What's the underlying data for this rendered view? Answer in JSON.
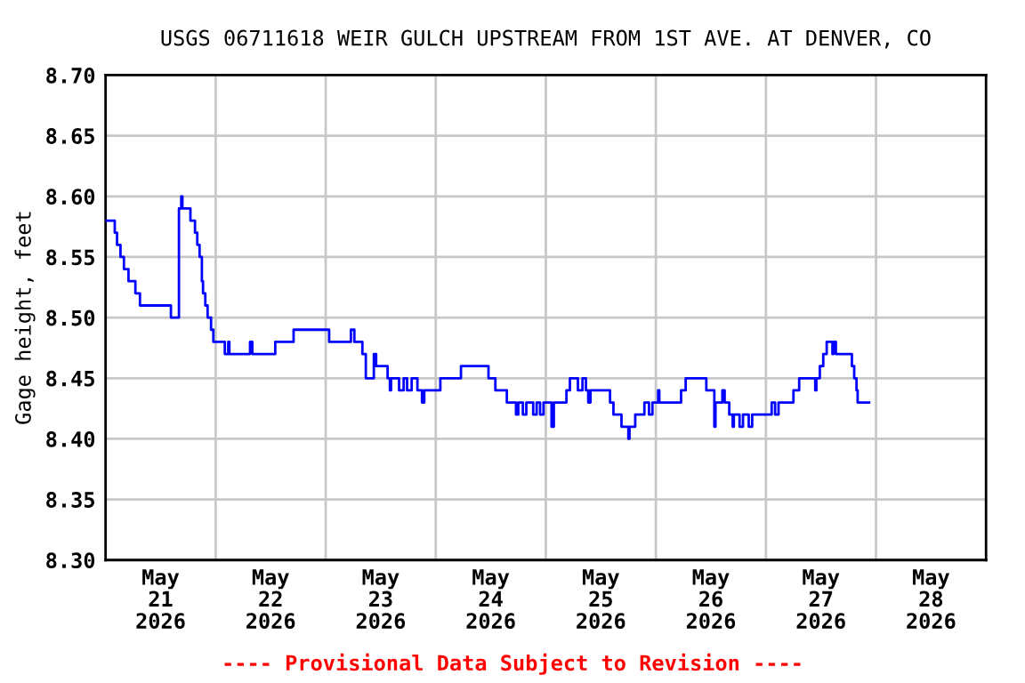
{
  "chart_data": {
    "type": "step",
    "title": "USGS 06711618 WEIR GULCH UPSTREAM FROM 1ST AVE. AT DENVER, CO",
    "ylabel": "Gage height, feet",
    "annotations": [
      "---- Provisional Data Subject to Revision ----"
    ],
    "series": [
      {
        "color": "#0000ff",
        "x": [
          "2026-05-21T00:00",
          "2026-05-21T02:00",
          "2026-05-21T02:30",
          "2026-05-21T03:15",
          "2026-05-21T04:00",
          "2026-05-21T05:00",
          "2026-05-21T06:30",
          "2026-05-21T07:30",
          "2026-05-21T14:15",
          "2026-05-21T16:00",
          "2026-05-21T16:30",
          "2026-05-21T16:45",
          "2026-05-21T18:30",
          "2026-05-21T19:30",
          "2026-05-21T20:00",
          "2026-05-21T20:30",
          "2026-05-21T21:00",
          "2026-05-21T21:15",
          "2026-05-21T21:45",
          "2026-05-21T22:15",
          "2026-05-21T23:00",
          "2026-05-21T23:30",
          "2026-05-22T02:00",
          "2026-05-22T02:45",
          "2026-05-22T03:00",
          "2026-05-22T07:30",
          "2026-05-22T08:00",
          "2026-05-22T13:00",
          "2026-05-22T17:00",
          "2026-05-23T00:45",
          "2026-05-23T05:30",
          "2026-05-23T06:15",
          "2026-05-23T08:00",
          "2026-05-23T08:45",
          "2026-05-23T10:30",
          "2026-05-23T11:00",
          "2026-05-23T13:30",
          "2026-05-23T14:00",
          "2026-05-23T14:15",
          "2026-05-23T15:30",
          "2026-05-23T16:00",
          "2026-05-23T17:00",
          "2026-05-23T17:45",
          "2026-05-23T18:45",
          "2026-05-23T20:00",
          "2026-05-23T21:00",
          "2026-05-23T21:30",
          "2026-05-24T01:00",
          "2026-05-24T05:30",
          "2026-05-24T11:30",
          "2026-05-24T13:00",
          "2026-05-24T15:30",
          "2026-05-24T17:30",
          "2026-05-24T18:00",
          "2026-05-24T19:00",
          "2026-05-24T19:45",
          "2026-05-24T21:15",
          "2026-05-24T22:00",
          "2026-05-24T22:45",
          "2026-05-24T23:30",
          "2026-05-25T01:15",
          "2026-05-25T01:45",
          "2026-05-25T04:30",
          "2026-05-25T05:15",
          "2026-05-25T07:00",
          "2026-05-25T08:00",
          "2026-05-25T08:45",
          "2026-05-25T09:15",
          "2026-05-25T09:45",
          "2026-05-25T14:00",
          "2026-05-25T14:45",
          "2026-05-25T16:30",
          "2026-05-25T18:00",
          "2026-05-25T18:15",
          "2026-05-25T19:30",
          "2026-05-25T21:30",
          "2026-05-25T22:30",
          "2026-05-25T23:15",
          "2026-05-26T00:30",
          "2026-05-26T00:45",
          "2026-05-26T05:30",
          "2026-05-26T06:30",
          "2026-05-26T11:00",
          "2026-05-26T12:45",
          "2026-05-26T13:00",
          "2026-05-26T14:30",
          "2026-05-26T15:00",
          "2026-05-26T16:00",
          "2026-05-26T16:45",
          "2026-05-26T17:00",
          "2026-05-26T18:15",
          "2026-05-26T19:00",
          "2026-05-26T20:15",
          "2026-05-26T21:00",
          "2026-05-27T01:15",
          "2026-05-27T02:00",
          "2026-05-27T02:45",
          "2026-05-27T06:00",
          "2026-05-27T07:15",
          "2026-05-27T10:45",
          "2026-05-27T11:00",
          "2026-05-27T11:45",
          "2026-05-27T12:30",
          "2026-05-27T13:15",
          "2026-05-27T14:30",
          "2026-05-27T14:45",
          "2026-05-27T15:15",
          "2026-05-27T18:45",
          "2026-05-27T19:15",
          "2026-05-27T19:45",
          "2026-05-27T20:00",
          "2026-05-27T22:30"
        ],
        "values": [
          8.58,
          8.57,
          8.56,
          8.55,
          8.54,
          8.53,
          8.52,
          8.51,
          8.5,
          8.59,
          8.6,
          8.59,
          8.58,
          8.57,
          8.56,
          8.55,
          8.53,
          8.52,
          8.51,
          8.5,
          8.49,
          8.48,
          8.47,
          8.48,
          8.47,
          8.48,
          8.47,
          8.48,
          8.49,
          8.48,
          8.49,
          8.48,
          8.47,
          8.45,
          8.47,
          8.46,
          8.45,
          8.44,
          8.45,
          8.45,
          8.44,
          8.45,
          8.44,
          8.45,
          8.44,
          8.43,
          8.44,
          8.45,
          8.46,
          8.45,
          8.44,
          8.43,
          8.42,
          8.43,
          8.42,
          8.43,
          8.42,
          8.43,
          8.42,
          8.43,
          8.41,
          8.43,
          8.44,
          8.45,
          8.44,
          8.45,
          8.44,
          8.43,
          8.44,
          8.43,
          8.42,
          8.41,
          8.4,
          8.41,
          8.42,
          8.43,
          8.42,
          8.43,
          8.44,
          8.43,
          8.44,
          8.45,
          8.44,
          8.41,
          8.43,
          8.44,
          8.43,
          8.42,
          8.41,
          8.42,
          8.41,
          8.42,
          8.41,
          8.42,
          8.43,
          8.42,
          8.43,
          8.44,
          8.45,
          8.44,
          8.45,
          8.46,
          8.47,
          8.48,
          8.47,
          8.48,
          8.47,
          8.46,
          8.45,
          8.44,
          8.43,
          8.43
        ]
      }
    ],
    "xlim": [
      "2026-05-21T00:00",
      "2026-05-29T00:00"
    ],
    "xticks": [
      {
        "value": "2026-05-21T12:00",
        "label": "May\n21\n2026"
      },
      {
        "value": "2026-05-22T00:00",
        "label": null
      },
      {
        "value": "2026-05-22T12:00",
        "label": "May\n22\n2026"
      },
      {
        "value": "2026-05-23T00:00",
        "label": null
      },
      {
        "value": "2026-05-23T12:00",
        "label": "May\n23\n2026"
      },
      {
        "value": "2026-05-24T00:00",
        "label": null
      },
      {
        "value": "2026-05-24T12:00",
        "label": "May\n24\n2026"
      },
      {
        "value": "2026-05-25T00:00",
        "label": null
      },
      {
        "value": "2026-05-25T12:00",
        "label": "May\n25\n2026"
      },
      {
        "value": "2026-05-26T00:00",
        "label": null
      },
      {
        "value": "2026-05-26T12:00",
        "label": "May\n26\n2026"
      },
      {
        "value": "2026-05-27T00:00",
        "label": null
      },
      {
        "value": "2026-05-27T12:00",
        "label": "May\n27\n2026"
      },
      {
        "value": "2026-05-28T00:00",
        "label": null
      },
      {
        "value": "2026-05-28T12:00",
        "label": "May\n28\n2026"
      }
    ],
    "ylim": [
      8.3,
      8.7
    ],
    "yticks": [
      {
        "value": 8.3,
        "label": "8.30"
      },
      {
        "value": 8.35,
        "label": "8.35"
      },
      {
        "value": 8.4,
        "label": "8.40"
      },
      {
        "value": 8.45,
        "label": "8.45"
      },
      {
        "value": 8.5,
        "label": "8.50"
      },
      {
        "value": 8.55,
        "label": "8.55"
      },
      {
        "value": 8.6,
        "label": "8.60"
      },
      {
        "value": 8.65,
        "label": "8.65"
      },
      {
        "value": 8.7,
        "label": "8.70"
      }
    ],
    "grid": true,
    "legend": false,
    "line_style": "solid",
    "marker": "none"
  }
}
